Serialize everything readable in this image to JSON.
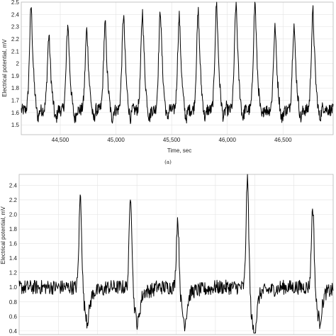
{
  "chart_data": [
    {
      "type": "line",
      "panel": "a",
      "caption": "(a)",
      "xlabel": "Time, sec",
      "ylabel": "Electrical potential, mV",
      "xlim": [
        44150,
        46950
      ],
      "ylim": [
        1.42,
        2.5
      ],
      "xticks": [
        44500,
        45000,
        45500,
        46000,
        46500
      ],
      "xtick_labels": [
        "44,500",
        "45,000",
        "45,500",
        "46,000",
        "46,500"
      ],
      "yticks": [
        1.5,
        1.6,
        1.7,
        1.8,
        1.9,
        2.0,
        2.1,
        2.2,
        2.3,
        2.4,
        2.5
      ],
      "ytick_labels": [
        "1.5",
        "1.6",
        "1.7",
        "1.8",
        "1.9",
        "2",
        "2.1",
        "2.2",
        "2.3",
        "2.4",
        "2.5"
      ],
      "grid": true,
      "series": [
        {
          "peaks": [
            {
              "x": 44240,
              "y": 2.47
            },
            {
              "x": 44400,
              "y": 2.23
            },
            {
              "x": 44570,
              "y": 2.32
            },
            {
              "x": 44740,
              "y": 2.28
            },
            {
              "x": 44905,
              "y": 2.33
            },
            {
              "x": 45070,
              "y": 2.4
            },
            {
              "x": 45240,
              "y": 2.42
            },
            {
              "x": 45400,
              "y": 2.44
            },
            {
              "x": 45570,
              "y": 2.39
            },
            {
              "x": 45740,
              "y": 2.42
            },
            {
              "x": 45905,
              "y": 2.5
            },
            {
              "x": 46080,
              "y": 2.5
            },
            {
              "x": 46250,
              "y": 2.5
            },
            {
              "x": 46430,
              "y": 2.3
            },
            {
              "x": 46600,
              "y": 2.32
            },
            {
              "x": 46770,
              "y": 2.43
            }
          ],
          "baseline": 1.62,
          "noise": 0.05
        }
      ]
    },
    {
      "type": "line",
      "panel": "b",
      "ylabel": "Electrical potential, mV",
      "ylim": [
        0.35,
        2.55
      ],
      "yticks": [
        0.4,
        0.6,
        0.8,
        1.0,
        1.2,
        1.4,
        1.6,
        1.8,
        2.0,
        2.2,
        2.4
      ],
      "ytick_labels": [
        "0.4",
        "0.6",
        "0.8",
        "1.0",
        "1.2",
        "1.4",
        "1.6",
        "1.8",
        "2.0",
        "2.2",
        "2.4"
      ],
      "grid": true,
      "series": [
        {
          "spikes": [
            {
              "x": 0.195,
              "y": 2.26,
              "min": 0.62
            },
            {
              "x": 0.355,
              "y": 2.3,
              "min": 0.57
            },
            {
              "x": 0.505,
              "y": 1.94,
              "min": 0.58
            },
            {
              "x": 0.727,
              "y": 2.5,
              "min": 0.42
            },
            {
              "x": 0.935,
              "y": 2.12,
              "min": 0.6
            }
          ],
          "baseline": 1.0,
          "noise": 0.1
        }
      ]
    }
  ]
}
